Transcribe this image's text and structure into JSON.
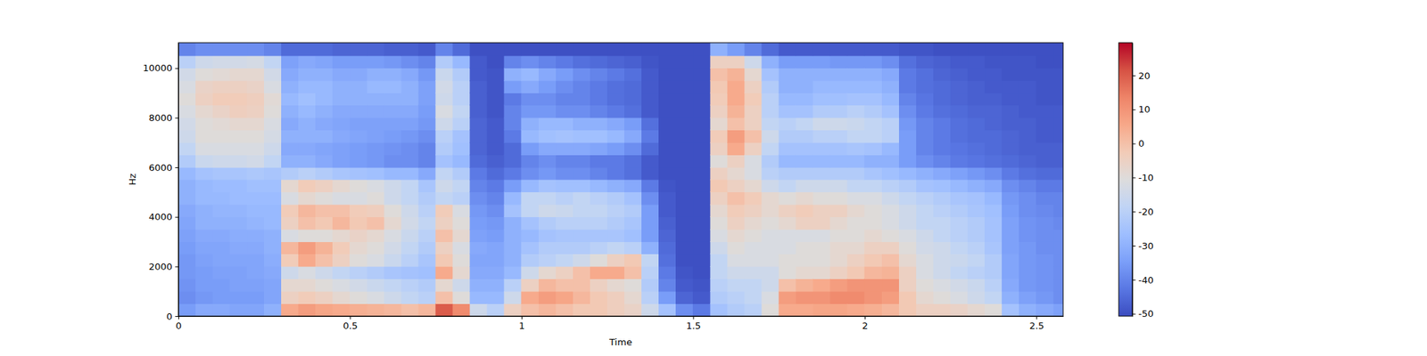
{
  "chart_data": {
    "type": "heatmap",
    "x_label": "Time",
    "y_label": "Hz",
    "xlim": [
      0,
      2.578
    ],
    "ylim": [
      0,
      11025
    ],
    "xticks": [
      0,
      0.5,
      1,
      1.5,
      2,
      2.5
    ],
    "yticks": [
      0,
      2000,
      4000,
      6000,
      8000,
      10000
    ],
    "x_edges": [
      0,
      0.05,
      0.1,
      0.15,
      0.2,
      0.25,
      0.3,
      0.35,
      0.4,
      0.45,
      0.5,
      0.55,
      0.6,
      0.65,
      0.7,
      0.75,
      0.8,
      0.85,
      0.9,
      0.95,
      1,
      1.05,
      1.1,
      1.15,
      1.2,
      1.25,
      1.3,
      1.35,
      1.4,
      1.45,
      1.5,
      1.55,
      1.6,
      1.65,
      1.7,
      1.75,
      1.8,
      1.85,
      1.9,
      1.95,
      2,
      2.05,
      2.1,
      2.15,
      2.2,
      2.25,
      2.3,
      2.35,
      2.4,
      2.45,
      2.5,
      2.55,
      2.578
    ],
    "y_edges": [
      0,
      500,
      1000,
      1500,
      2000,
      2500,
      3000,
      3500,
      4000,
      4500,
      5000,
      5500,
      6000,
      6500,
      7000,
      7500,
      8000,
      8500,
      9000,
      9500,
      10000,
      10500,
      11025
    ],
    "values": [
      [
        -35,
        -38,
        -37,
        -36,
        -36,
        -35,
        -34,
        -33,
        -32,
        -30,
        -30,
        -28,
        -22,
        -18,
        -15,
        -14,
        -12,
        -10,
        -12,
        -14,
        -20,
        -40
      ],
      [
        -32,
        -36,
        -35,
        -35,
        -34,
        -33,
        -32,
        -30,
        -30,
        -28,
        -28,
        -25,
        -16,
        -12,
        -10,
        -10,
        -8,
        -5,
        -6,
        -10,
        -15,
        -38
      ],
      [
        -32,
        -35,
        -35,
        -34,
        -33,
        -33,
        -32,
        -30,
        -29,
        -28,
        -27,
        -24,
        -15,
        -12,
        -10,
        -9,
        -6,
        -3,
        -5,
        -9,
        -14,
        -38
      ],
      [
        -33,
        -35,
        -34,
        -34,
        -33,
        -32,
        -31,
        -30,
        -29,
        -27,
        -27,
        -24,
        -15,
        -12,
        -10,
        -8,
        -4,
        -3,
        -5,
        -8,
        -14,
        -38
      ],
      [
        -33,
        -35,
        -34,
        -33,
        -33,
        -32,
        -31,
        -29,
        -28,
        -27,
        -26,
        -23,
        -14,
        -12,
        -10,
        -8,
        -5,
        -4,
        -6,
        -8,
        -13,
        -38
      ],
      [
        -30,
        -33,
        -33,
        -32,
        -31,
        -30,
        -30,
        -28,
        -28,
        -27,
        -26,
        -24,
        -18,
        -15,
        -13,
        -12,
        -10,
        -9,
        -12,
        -14,
        -18,
        -40
      ],
      [
        5,
        -5,
        -8,
        -15,
        -3,
        2,
        -12,
        -5,
        -3,
        -12,
        -8,
        -22,
        -30,
        -32,
        -30,
        -32,
        -30,
        -28,
        -30,
        -32,
        -34,
        -45
      ],
      [
        8,
        -3,
        -8,
        -12,
        5,
        8,
        -10,
        0,
        2,
        -8,
        -3,
        -20,
        -30,
        -32,
        -30,
        -30,
        -28,
        -26,
        -28,
        -30,
        -32,
        -45
      ],
      [
        6,
        -5,
        -10,
        -15,
        0,
        3,
        -10,
        -2,
        0,
        -10,
        -5,
        -22,
        -32,
        -33,
        -30,
        -32,
        -30,
        -28,
        -28,
        -30,
        -33,
        -45
      ],
      [
        5,
        -8,
        -12,
        -18,
        -5,
        -3,
        -8,
        2,
        0,
        -12,
        -8,
        -24,
        -34,
        -34,
        -32,
        -33,
        -32,
        -30,
        -30,
        -32,
        -35,
        -46
      ],
      [
        4,
        -10,
        -14,
        -20,
        -10,
        -8,
        -6,
        -2,
        -3,
        -12,
        -10,
        -25,
        -35,
        -35,
        -33,
        -34,
        -32,
        -30,
        -30,
        -32,
        -35,
        -46
      ],
      [
        3,
        -12,
        -16,
        -22,
        -12,
        -10,
        -8,
        0,
        -4,
        -10,
        -12,
        -26,
        -36,
        -36,
        -34,
        -34,
        -32,
        -30,
        -28,
        -30,
        -35,
        -46
      ],
      [
        2,
        -15,
        -18,
        -24,
        -16,
        -14,
        -12,
        -8,
        -10,
        -15,
        -15,
        -28,
        -38,
        -37,
        -35,
        -34,
        -32,
        -30,
        -28,
        -30,
        -36,
        -47
      ],
      [
        0,
        -18,
        -20,
        -25,
        -20,
        -18,
        -16,
        -14,
        -15,
        -18,
        -18,
        -28,
        -38,
        -38,
        -36,
        -34,
        -32,
        -30,
        -30,
        -32,
        -38,
        -47
      ],
      [
        2,
        -20,
        -22,
        -26,
        -24,
        -22,
        -20,
        -18,
        -20,
        -22,
        -24,
        -32,
        -40,
        -40,
        -38,
        -36,
        -35,
        -34,
        -34,
        -36,
        -40,
        -48
      ],
      [
        20,
        0,
        -8,
        5,
        -2,
        -5,
        0,
        -5,
        -3,
        -18,
        -15,
        -18,
        -25,
        -22,
        -20,
        -15,
        -12,
        -15,
        -14,
        -16,
        -22,
        -40
      ],
      [
        12,
        -10,
        -15,
        -8,
        -10,
        -12,
        -8,
        -10,
        -12,
        -20,
        -18,
        -22,
        -28,
        -26,
        -25,
        -20,
        -18,
        -20,
        -20,
        -22,
        -28,
        -45
      ],
      [
        -15,
        -28,
        -30,
        -32,
        -33,
        -32,
        -34,
        -35,
        -36,
        -38,
        -40,
        -42,
        -45,
        -46,
        -46,
        -46,
        -47,
        -47,
        -47,
        -48,
        -48,
        -50
      ],
      [
        -20,
        -28,
        -30,
        -32,
        -33,
        -33,
        -35,
        -36,
        -38,
        -40,
        -42,
        -45,
        -47,
        -48,
        -48,
        -48,
        -49,
        -49,
        -49,
        -49,
        -50,
        -50
      ],
      [
        -5,
        -15,
        -20,
        -28,
        -30,
        -30,
        -30,
        -30,
        -25,
        -28,
        -35,
        -42,
        -45,
        -45,
        -42,
        -40,
        -40,
        -42,
        -35,
        -30,
        -40,
        -50
      ],
      [
        0,
        5,
        -5,
        -15,
        -22,
        -25,
        -28,
        -25,
        -18,
        -18,
        -28,
        -38,
        -40,
        -35,
        -28,
        -30,
        -36,
        -38,
        -32,
        -28,
        -38,
        -50
      ],
      [
        2,
        8,
        2,
        -8,
        -20,
        -22,
        -25,
        -22,
        -15,
        -18,
        -25,
        -36,
        -38,
        -32,
        -26,
        -28,
        -36,
        -38,
        -35,
        -32,
        -40,
        -50
      ],
      [
        0,
        6,
        0,
        -5,
        -18,
        -22,
        -24,
        -20,
        -16,
        -20,
        -26,
        -38,
        -40,
        -32,
        -25,
        -28,
        -38,
        -40,
        -38,
        -35,
        -42,
        -50
      ],
      [
        -2,
        2,
        0,
        0,
        -15,
        -22,
        -24,
        -20,
        -18,
        -18,
        -26,
        -38,
        -40,
        -32,
        -26,
        -30,
        -38,
        -40,
        -40,
        -38,
        -44,
        -50
      ],
      [
        -2,
        -2,
        -5,
        5,
        -10,
        -20,
        -24,
        -20,
        -18,
        -20,
        -28,
        -40,
        -42,
        -33,
        -26,
        -30,
        -40,
        -42,
        -42,
        -40,
        -45,
        -50
      ],
      [
        -4,
        -4,
        -8,
        5,
        -5,
        -18,
        -24,
        -22,
        -20,
        -22,
        -30,
        -42,
        -42,
        -35,
        -28,
        -32,
        -42,
        -44,
        -44,
        -42,
        -46,
        -50
      ],
      [
        -6,
        -8,
        -10,
        0,
        -2,
        -20,
        -26,
        -24,
        -22,
        -25,
        -32,
        -44,
        -44,
        -38,
        -32,
        -35,
        -44,
        -45,
        -45,
        -44,
        -47,
        -50
      ],
      [
        -15,
        -20,
        -22,
        -20,
        -18,
        -30,
        -35,
        -35,
        -35,
        -38,
        -42,
        -48,
        -48,
        -45,
        -42,
        -44,
        -48,
        -48,
        -48,
        -48,
        -49,
        -50
      ],
      [
        -25,
        -35,
        -40,
        -42,
        -44,
        -45,
        -46,
        -47,
        -48,
        -48,
        -49,
        -50,
        -50,
        -50,
        -50,
        -50,
        -50,
        -50,
        -50,
        -50,
        -50,
        -50
      ],
      [
        -38,
        -46,
        -48,
        -49,
        -50,
        -50,
        -50,
        -50,
        -50,
        -50,
        -50,
        -50,
        -50,
        -50,
        -50,
        -50,
        -50,
        -50,
        -50,
        -50,
        -50,
        -50
      ],
      [
        -42,
        -48,
        -49,
        -50,
        -50,
        -50,
        -50,
        -50,
        -50,
        -50,
        -50,
        -50,
        -50,
        -50,
        -50,
        -50,
        -50,
        -50,
        -50,
        -50,
        -50,
        -50
      ],
      [
        -25,
        -22,
        -20,
        -18,
        -18,
        -15,
        -12,
        -10,
        -8,
        -5,
        -2,
        -5,
        -10,
        -5,
        -3,
        -8,
        -5,
        -3,
        -2,
        0,
        -5,
        -30
      ],
      [
        -22,
        -20,
        -18,
        -15,
        -12,
        -10,
        -8,
        -5,
        -3,
        0,
        -5,
        -8,
        -5,
        5,
        8,
        0,
        3,
        5,
        5,
        3,
        -5,
        -35
      ],
      [
        -20,
        -18,
        -18,
        -15,
        -12,
        -12,
        -10,
        -8,
        -5,
        -3,
        -8,
        -12,
        -12,
        -5,
        0,
        -5,
        -5,
        -3,
        -5,
        -8,
        -15,
        -40
      ],
      [
        -10,
        -12,
        -15,
        -15,
        -12,
        -12,
        -12,
        -10,
        -8,
        -8,
        -15,
        -20,
        -22,
        -18,
        -15,
        -18,
        -20,
        -20,
        -22,
        -25,
        -30,
        -45
      ],
      [
        5,
        8,
        0,
        -10,
        -10,
        -12,
        -12,
        -8,
        -5,
        -10,
        -18,
        -22,
        -28,
        -25,
        -22,
        -20,
        -25,
        -28,
        -30,
        -30,
        -35,
        -48
      ],
      [
        5,
        10,
        3,
        -8,
        -10,
        -10,
        -12,
        -5,
        -3,
        -8,
        -15,
        -22,
        -28,
        -25,
        -22,
        -18,
        -25,
        -28,
        -30,
        -30,
        -35,
        -48
      ],
      [
        6,
        10,
        5,
        -8,
        -10,
        -10,
        -12,
        -5,
        -5,
        -10,
        -15,
        -22,
        -28,
        -25,
        -20,
        -15,
        -22,
        -26,
        -28,
        -30,
        -35,
        -48
      ],
      [
        6,
        12,
        8,
        -5,
        -8,
        -8,
        -10,
        -8,
        -5,
        -10,
        -15,
        -22,
        -28,
        -25,
        -20,
        -15,
        -22,
        -26,
        -28,
        -30,
        -36,
        -48
      ],
      [
        5,
        12,
        10,
        -2,
        -5,
        -8,
        -10,
        -10,
        -8,
        -12,
        -18,
        -22,
        -28,
        -24,
        -18,
        -16,
        -20,
        -25,
        -28,
        -30,
        -36,
        -48
      ],
      [
        4,
        10,
        10,
        2,
        -2,
        -5,
        -8,
        -10,
        -10,
        -12,
        -18,
        -24,
        -30,
        -25,
        -18,
        -18,
        -22,
        -25,
        -28,
        -30,
        -36,
        -48
      ],
      [
        2,
        8,
        10,
        3,
        0,
        -5,
        -10,
        -12,
        -12,
        -15,
        -20,
        -26,
        -30,
        -28,
        -20,
        -20,
        -25,
        -28,
        -30,
        -32,
        -38,
        -48
      ],
      [
        -2,
        -2,
        -5,
        -5,
        -8,
        -10,
        -12,
        -15,
        -15,
        -18,
        -22,
        -28,
        -35,
        -35,
        -35,
        -36,
        -38,
        -40,
        -42,
        -42,
        -44,
        -49
      ],
      [
        -5,
        -8,
        -10,
        -12,
        -12,
        -14,
        -15,
        -18,
        -18,
        -20,
        -25,
        -30,
        -38,
        -40,
        -40,
        -40,
        -42,
        -43,
        -44,
        -44,
        -46,
        -49
      ],
      [
        -5,
        -10,
        -12,
        -15,
        -15,
        -15,
        -18,
        -18,
        -20,
        -22,
        -26,
        -32,
        -40,
        -42,
        -42,
        -42,
        -44,
        -45,
        -45,
        -46,
        -47,
        -50
      ],
      [
        -6,
        -12,
        -14,
        -18,
        -16,
        -18,
        -20,
        -20,
        -22,
        -24,
        -28,
        -34,
        -42,
        -43,
        -44,
        -44,
        -45,
        -46,
        -46,
        -47,
        -48,
        -50
      ],
      [
        -8,
        -15,
        -16,
        -20,
        -18,
        -20,
        -22,
        -22,
        -24,
        -25,
        -30,
        -36,
        -43,
        -44,
        -45,
        -45,
        -46,
        -47,
        -47,
        -48,
        -48,
        -50
      ],
      [
        -10,
        -18,
        -20,
        -22,
        -22,
        -24,
        -25,
        -25,
        -26,
        -28,
        -32,
        -38,
        -44,
        -45,
        -45,
        -46,
        -46,
        -47,
        -48,
        -48,
        -49,
        -50
      ],
      [
        -25,
        -30,
        -32,
        -33,
        -33,
        -34,
        -34,
        -34,
        -35,
        -36,
        -38,
        -42,
        -45,
        -46,
        -46,
        -47,
        -47,
        -48,
        -48,
        -49,
        -49,
        -50
      ],
      [
        -30,
        -34,
        -36,
        -36,
        -36,
        -36,
        -37,
        -37,
        -38,
        -38,
        -40,
        -44,
        -46,
        -47,
        -47,
        -47,
        -48,
        -48,
        -48,
        -49,
        -49,
        -50
      ],
      [
        -32,
        -36,
        -37,
        -37,
        -37,
        -38,
        -38,
        -38,
        -39,
        -40,
        -42,
        -45,
        -47,
        -47,
        -48,
        -48,
        -48,
        -49,
        -49,
        -49,
        -50,
        -50
      ],
      [
        -34,
        -38,
        -38,
        -38,
        -38,
        -38,
        -38,
        -39,
        -40,
        -40,
        -42,
        -45,
        -47,
        -47,
        -48,
        -48,
        -48,
        -49,
        -49,
        -49,
        -50,
        -50
      ]
    ],
    "colorbar": {
      "range": [
        -50.7,
        29.6
      ],
      "ticks": [
        -50,
        -40,
        -30,
        -20,
        -10,
        0,
        10,
        20
      ]
    }
  }
}
